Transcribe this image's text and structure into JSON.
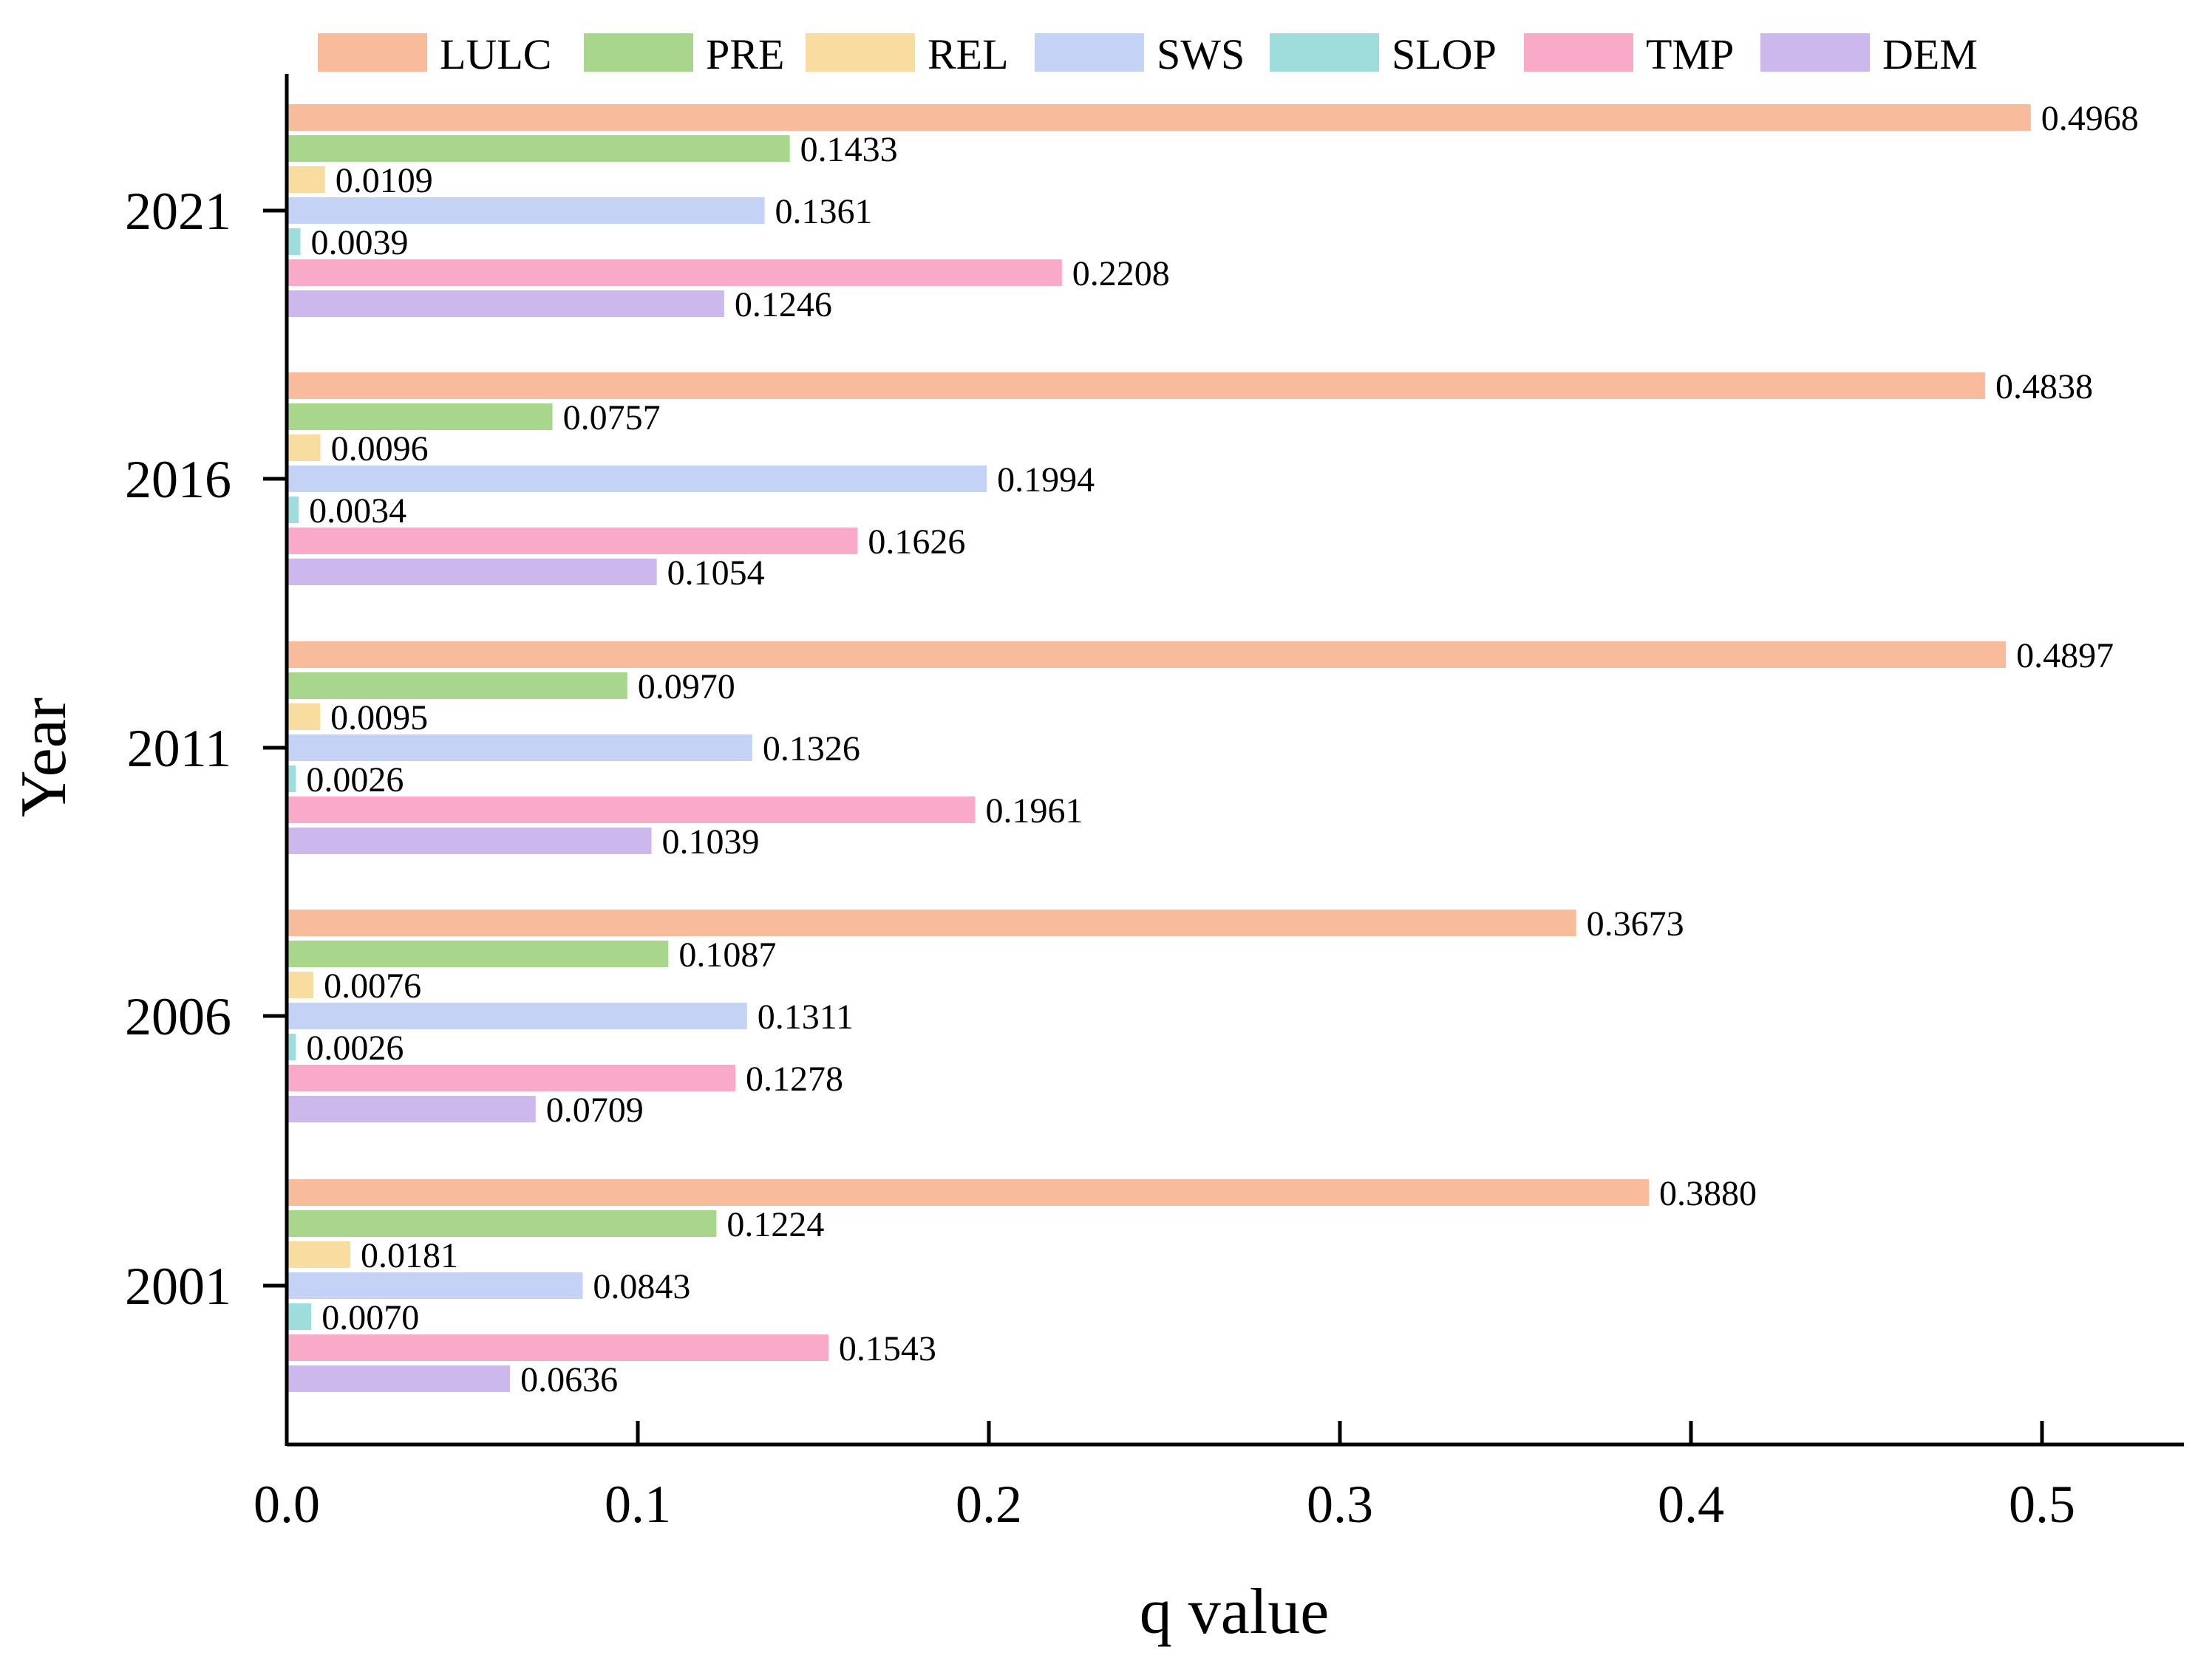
{
  "chart_data": {
    "type": "bar",
    "orientation": "horizontal",
    "title": "",
    "xlabel": "q value",
    "ylabel": "Year",
    "xlim": [
      0,
      0.54
    ],
    "xticks": [
      "0.0",
      "0.1",
      "0.2",
      "0.3",
      "0.4",
      "0.5"
    ],
    "xtick_values": [
      0,
      0.1,
      0.2,
      0.3,
      0.4,
      0.5
    ],
    "categories": [
      "2021",
      "2016",
      "2011",
      "2006",
      "2001"
    ],
    "legend_position": "top",
    "grid": false,
    "series": [
      {
        "name": "LULC",
        "color": "#f8bb9c",
        "values": [
          0.4968,
          0.4838,
          0.4897,
          0.3673,
          0.388
        ],
        "labels": [
          "0.4968",
          "0.4838",
          "0.4897",
          "0.3673",
          "0.3880"
        ]
      },
      {
        "name": "PRE",
        "color": "#a8d68c",
        "values": [
          0.1433,
          0.0757,
          0.097,
          0.1087,
          0.1224
        ],
        "labels": [
          "0.1433",
          "0.0757",
          "0.0970",
          "0.1087",
          "0.1224"
        ]
      },
      {
        "name": "REL",
        "color": "#f9dda0",
        "values": [
          0.0109,
          0.0096,
          0.0095,
          0.0076,
          0.0181
        ],
        "labels": [
          "0.0109",
          "0.0096",
          "0.0095",
          "0.0076",
          "0.0181"
        ]
      },
      {
        "name": "SWS",
        "color": "#c3d2f5",
        "values": [
          0.1361,
          0.1994,
          0.1326,
          0.1311,
          0.0843
        ],
        "labels": [
          "0.1361",
          "0.1994",
          "0.1326",
          "0.1311",
          "0.0843"
        ]
      },
      {
        "name": "SLOP",
        "color": "#9fdcdc",
        "values": [
          0.0039,
          0.0034,
          0.0026,
          0.0026,
          0.007
        ],
        "labels": [
          "0.0039",
          "0.0034",
          "0.0026",
          "0.0026",
          "0.0070"
        ]
      },
      {
        "name": "TMP",
        "color": "#f8aac8",
        "values": [
          0.2208,
          0.1626,
          0.1961,
          0.1278,
          0.1543
        ],
        "labels": [
          "0.2208",
          "0.1626",
          "0.1961",
          "0.1278",
          "0.1543"
        ]
      },
      {
        "name": "DEM",
        "color": "#ccb8ec",
        "values": [
          0.1246,
          0.1054,
          0.1039,
          0.0709,
          0.0636
        ],
        "labels": [
          "0.1246",
          "0.1054",
          "0.1039",
          "0.0709",
          "0.0636"
        ]
      }
    ]
  }
}
